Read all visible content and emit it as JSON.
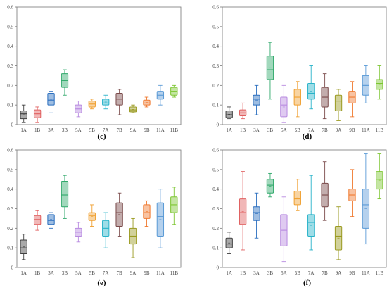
{
  "figure": {
    "labels": [
      "(c)",
      "(d)",
      "(e)",
      "(f)"
    ]
  },
  "chart_data": [
    {
      "type": "box",
      "panel_label": "(c)",
      "ylim": [
        0,
        0.6
      ],
      "yticks": [
        "0",
        "0.1",
        "0.2",
        "0.3",
        "0.4",
        "0.5",
        "0.6"
      ],
      "categories": [
        "1A",
        "1B",
        "3A",
        "3B",
        "5A",
        "5B",
        "7A",
        "7B",
        "9A",
        "9B",
        "11A",
        "11B"
      ],
      "colors": [
        "#404040",
        "#e06060",
        "#2b6fbf",
        "#2fa86a",
        "#b88ae0",
        "#f0a030",
        "#29b3c9",
        "#7a4a4a",
        "#9a9a20",
        "#f07a30",
        "#5a9ad6",
        "#7cc630"
      ],
      "boxes": [
        {
          "min": 0.01,
          "q1": 0.03,
          "median": 0.055,
          "q3": 0.07,
          "max": 0.1
        },
        {
          "min": 0.01,
          "q1": 0.035,
          "median": 0.055,
          "q3": 0.075,
          "max": 0.09
        },
        {
          "min": 0.06,
          "q1": 0.1,
          "median": 0.125,
          "q3": 0.16,
          "max": 0.17
        },
        {
          "min": 0.15,
          "q1": 0.19,
          "median": 0.225,
          "q3": 0.26,
          "max": 0.28
        },
        {
          "min": 0.04,
          "q1": 0.06,
          "median": 0.08,
          "q3": 0.1,
          "max": 0.12
        },
        {
          "min": 0.08,
          "q1": 0.09,
          "median": 0.105,
          "q3": 0.12,
          "max": 0.13
        },
        {
          "min": 0.08,
          "q1": 0.1,
          "median": 0.11,
          "q3": 0.13,
          "max": 0.15
        },
        {
          "min": 0.05,
          "q1": 0.1,
          "median": 0.13,
          "q3": 0.16,
          "max": 0.18
        },
        {
          "min": 0.06,
          "q1": 0.065,
          "median": 0.075,
          "q3": 0.09,
          "max": 0.1
        },
        {
          "min": 0.09,
          "q1": 0.1,
          "median": 0.11,
          "q3": 0.125,
          "max": 0.14
        },
        {
          "min": 0.1,
          "q1": 0.13,
          "median": 0.15,
          "q3": 0.17,
          "max": 0.2
        },
        {
          "min": 0.14,
          "q1": 0.15,
          "median": 0.17,
          "q3": 0.19,
          "max": 0.2
        }
      ]
    },
    {
      "type": "box",
      "panel_label": "(d)",
      "ylim": [
        0,
        0.6
      ],
      "yticks": [
        "0",
        "0.1",
        "0.2",
        "0.3",
        "0.4",
        "0.5",
        "0.6"
      ],
      "categories": [
        "1A",
        "1B",
        "3A",
        "3B",
        "5A",
        "5B",
        "7A",
        "7B",
        "9A",
        "9B",
        "11A",
        "11B"
      ],
      "colors": [
        "#404040",
        "#e06060",
        "#2b6fbf",
        "#2fa86a",
        "#b88ae0",
        "#f0a030",
        "#29b3c9",
        "#7a4a4a",
        "#9a9a20",
        "#f07a30",
        "#5a9ad6",
        "#7cc630"
      ],
      "boxes": [
        {
          "min": 0.03,
          "q1": 0.035,
          "median": 0.05,
          "q3": 0.07,
          "max": 0.09
        },
        {
          "min": 0.03,
          "q1": 0.045,
          "median": 0.06,
          "q3": 0.075,
          "max": 0.11
        },
        {
          "min": 0.05,
          "q1": 0.1,
          "median": 0.13,
          "q3": 0.15,
          "max": 0.2
        },
        {
          "min": 0.13,
          "q1": 0.23,
          "median": 0.28,
          "q3": 0.35,
          "max": 0.42
        },
        {
          "min": 0.01,
          "q1": 0.04,
          "median": 0.1,
          "q3": 0.14,
          "max": 0.2
        },
        {
          "min": 0.04,
          "q1": 0.1,
          "median": 0.14,
          "q3": 0.18,
          "max": 0.22
        },
        {
          "min": 0.08,
          "q1": 0.13,
          "median": 0.16,
          "q3": 0.21,
          "max": 0.3
        },
        {
          "min": 0.03,
          "q1": 0.09,
          "median": 0.14,
          "q3": 0.19,
          "max": 0.26
        },
        {
          "min": 0.02,
          "q1": 0.07,
          "median": 0.12,
          "q3": 0.15,
          "max": 0.18
        },
        {
          "min": 0.04,
          "q1": 0.11,
          "median": 0.14,
          "q3": 0.17,
          "max": 0.22
        },
        {
          "min": 0.11,
          "q1": 0.15,
          "median": 0.2,
          "q3": 0.25,
          "max": 0.3
        },
        {
          "min": 0.13,
          "q1": 0.18,
          "median": 0.21,
          "q3": 0.23,
          "max": 0.3
        }
      ]
    },
    {
      "type": "box",
      "panel_label": "(e)",
      "ylim": [
        0,
        0.6
      ],
      "yticks": [
        "0",
        "0.1",
        "0.2",
        "0.3",
        "0.4",
        "0.5",
        "0.6"
      ],
      "categories": [
        "1A",
        "1B",
        "3A",
        "3B",
        "5A",
        "5B",
        "7A",
        "7B",
        "9A",
        "9B",
        "11A",
        "11B"
      ],
      "colors": [
        "#404040",
        "#e06060",
        "#2b6fbf",
        "#2fa86a",
        "#b88ae0",
        "#f0a030",
        "#29b3c9",
        "#7a4a4a",
        "#9a9a20",
        "#f07a30",
        "#5a9ad6",
        "#7cc630"
      ],
      "boxes": [
        {
          "min": 0.04,
          "q1": 0.07,
          "median": 0.1,
          "q3": 0.14,
          "max": 0.17
        },
        {
          "min": 0.19,
          "q1": 0.22,
          "median": 0.245,
          "q3": 0.265,
          "max": 0.29
        },
        {
          "min": 0.2,
          "q1": 0.22,
          "median": 0.24,
          "q3": 0.27,
          "max": 0.28
        },
        {
          "min": 0.25,
          "q1": 0.31,
          "median": 0.37,
          "q3": 0.44,
          "max": 0.47
        },
        {
          "min": 0.13,
          "q1": 0.16,
          "median": 0.18,
          "q3": 0.2,
          "max": 0.23
        },
        {
          "min": 0.21,
          "q1": 0.24,
          "median": 0.265,
          "q3": 0.28,
          "max": 0.32
        },
        {
          "min": 0.1,
          "q1": 0.16,
          "median": 0.2,
          "q3": 0.24,
          "max": 0.28
        },
        {
          "min": 0.16,
          "q1": 0.21,
          "median": 0.28,
          "q3": 0.33,
          "max": 0.38
        },
        {
          "min": 0.05,
          "q1": 0.12,
          "median": 0.16,
          "q3": 0.2,
          "max": 0.25
        },
        {
          "min": 0.21,
          "q1": 0.25,
          "median": 0.28,
          "q3": 0.32,
          "max": 0.34
        },
        {
          "min": 0.1,
          "q1": 0.16,
          "median": 0.26,
          "q3": 0.33,
          "max": 0.4
        },
        {
          "min": 0.22,
          "q1": 0.28,
          "median": 0.32,
          "q3": 0.36,
          "max": 0.41
        }
      ]
    },
    {
      "type": "box",
      "panel_label": "(f)",
      "ylim": [
        0,
        0.6
      ],
      "yticks": [
        "0",
        "0.1",
        "0.2",
        "0.3",
        "0.4",
        "0.5",
        "0.6"
      ],
      "categories": [
        "1A",
        "1B",
        "3A",
        "3B",
        "5A",
        "5B",
        "7A",
        "7B",
        "9A",
        "9B",
        "11A",
        "11B"
      ],
      "colors": [
        "#404040",
        "#e06060",
        "#2b6fbf",
        "#2fa86a",
        "#b88ae0",
        "#f0a030",
        "#29b3c9",
        "#7a4a4a",
        "#9a9a20",
        "#f07a30",
        "#5a9ad6",
        "#7cc630"
      ],
      "boxes": [
        {
          "min": 0.07,
          "q1": 0.1,
          "median": 0.12,
          "q3": 0.15,
          "max": 0.18
        },
        {
          "min": 0.09,
          "q1": 0.22,
          "median": 0.28,
          "q3": 0.35,
          "max": 0.49
        },
        {
          "min": 0.15,
          "q1": 0.24,
          "median": 0.28,
          "q3": 0.31,
          "max": 0.38
        },
        {
          "min": 0.36,
          "q1": 0.38,
          "median": 0.42,
          "q3": 0.45,
          "max": 0.48
        },
        {
          "min": 0.03,
          "q1": 0.11,
          "median": 0.19,
          "q3": 0.27,
          "max": 0.36
        },
        {
          "min": 0.29,
          "q1": 0.32,
          "median": 0.35,
          "q3": 0.39,
          "max": 0.45
        },
        {
          "min": 0.09,
          "q1": 0.16,
          "median": 0.23,
          "q3": 0.27,
          "max": 0.47
        },
        {
          "min": 0.24,
          "q1": 0.31,
          "median": 0.37,
          "q3": 0.43,
          "max": 0.54
        },
        {
          "min": 0.04,
          "q1": 0.09,
          "median": 0.16,
          "q3": 0.21,
          "max": 0.31
        },
        {
          "min": 0.26,
          "q1": 0.34,
          "median": 0.37,
          "q3": 0.4,
          "max": 0.5
        },
        {
          "min": 0.12,
          "q1": 0.2,
          "median": 0.32,
          "q3": 0.4,
          "max": 0.58
        },
        {
          "min": 0.35,
          "q1": 0.4,
          "median": 0.45,
          "q3": 0.49,
          "max": 0.58
        }
      ]
    }
  ]
}
